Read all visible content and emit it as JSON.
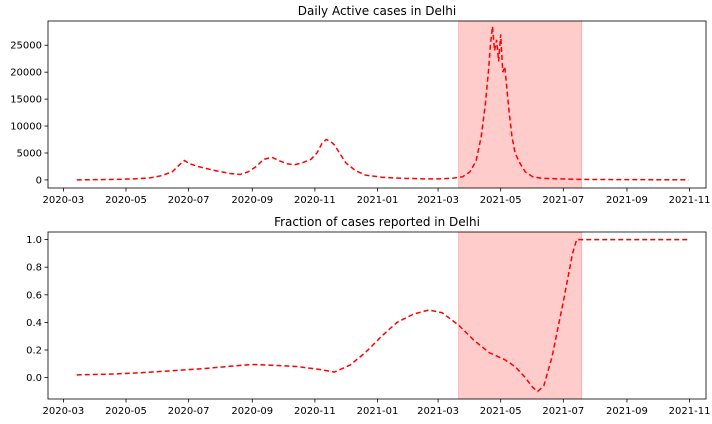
{
  "chart_data": [
    {
      "type": "line",
      "title": "Daily Active cases in Delhi",
      "xlabel": "",
      "ylabel": "",
      "xlim": [
        "2020-02-15",
        "2021-11-17"
      ],
      "ylim": [
        -1500,
        29500
      ],
      "grid": false,
      "x_ticks": [
        "2020-03",
        "2020-05",
        "2020-07",
        "2020-09",
        "2020-11",
        "2021-01",
        "2021-03",
        "2021-05",
        "2021-07",
        "2021-09",
        "2021-11"
      ],
      "y_ticks": [
        0,
        5000,
        10000,
        15000,
        20000,
        25000
      ],
      "highlight": {
        "from": "2021-03-21",
        "to": "2021-07-19",
        "color": "#ff0000"
      },
      "series": [
        {
          "color": "#ff0000",
          "x": [
            "2020-03-14",
            "2020-04-01",
            "2020-04-20",
            "2020-05-10",
            "2020-05-25",
            "2020-06-05",
            "2020-06-15",
            "2020-06-22",
            "2020-06-27",
            "2020-07-02",
            "2020-07-10",
            "2020-07-25",
            "2020-08-10",
            "2020-08-20",
            "2020-08-28",
            "2020-09-05",
            "2020-09-12",
            "2020-09-20",
            "2020-09-28",
            "2020-10-05",
            "2020-10-12",
            "2020-10-20",
            "2020-10-28",
            "2020-11-03",
            "2020-11-08",
            "2020-11-12",
            "2020-11-16",
            "2020-11-20",
            "2020-11-25",
            "2020-12-01",
            "2020-12-10",
            "2020-12-20",
            "2021-01-05",
            "2021-01-25",
            "2021-02-15",
            "2021-03-01",
            "2021-03-15",
            "2021-03-25",
            "2021-04-01",
            "2021-04-07",
            "2021-04-12",
            "2021-04-16",
            "2021-04-19",
            "2021-04-21",
            "2021-04-23",
            "2021-04-25",
            "2021-04-27",
            "2021-04-29",
            "2021-05-01",
            "2021-05-03",
            "2021-05-05",
            "2021-05-07",
            "2021-05-09",
            "2021-05-12",
            "2021-05-15",
            "2021-05-20",
            "2021-05-25",
            "2021-06-01",
            "2021-06-10",
            "2021-06-25",
            "2021-07-15",
            "2021-08-01",
            "2021-09-01",
            "2021-10-01",
            "2021-10-31"
          ],
          "y": [
            0,
            50,
            100,
            200,
            400,
            800,
            1500,
            2800,
            3600,
            3000,
            2500,
            1800,
            1200,
            1000,
            1500,
            2500,
            3800,
            4200,
            3500,
            3000,
            2800,
            3200,
            3800,
            5000,
            6800,
            7500,
            7200,
            6500,
            5000,
            3200,
            1800,
            900,
            500,
            300,
            200,
            200,
            300,
            600,
            1500,
            3500,
            8000,
            14000,
            20000,
            25000,
            28500,
            24000,
            26000,
            22000,
            27000,
            20000,
            21000,
            17000,
            13000,
            8000,
            5000,
            3000,
            1500,
            600,
            300,
            200,
            100,
            80,
            50,
            40,
            30
          ]
        }
      ]
    },
    {
      "type": "line",
      "title": "Fraction of cases reported in Delhi",
      "xlabel": "",
      "ylabel": "",
      "xlim": [
        "2020-02-15",
        "2021-11-17"
      ],
      "ylim": [
        -0.155,
        1.055
      ],
      "grid": false,
      "x_ticks": [
        "2020-03",
        "2020-05",
        "2020-07",
        "2020-09",
        "2020-11",
        "2021-01",
        "2021-03",
        "2021-05",
        "2021-07",
        "2021-09",
        "2021-11"
      ],
      "y_ticks": [
        0.0,
        0.2,
        0.4,
        0.6,
        0.8,
        1.0
      ],
      "highlight": {
        "from": "2021-03-21",
        "to": "2021-07-19",
        "color": "#ff0000"
      },
      "series": [
        {
          "color": "#ff0000",
          "x": [
            "2020-03-14",
            "2020-04-15",
            "2020-05-15",
            "2020-06-15",
            "2020-07-15",
            "2020-08-15",
            "2020-09-01",
            "2020-09-20",
            "2020-10-15",
            "2020-11-05",
            "2020-11-20",
            "2020-12-05",
            "2020-12-20",
            "2021-01-05",
            "2021-01-20",
            "2021-02-05",
            "2021-02-20",
            "2021-03-05",
            "2021-03-21",
            "2021-04-05",
            "2021-04-20",
            "2021-05-05",
            "2021-05-15",
            "2021-05-25",
            "2021-06-01",
            "2021-06-06",
            "2021-06-12",
            "2021-06-20",
            "2021-07-01",
            "2021-07-10",
            "2021-07-14",
            "2021-08-01",
            "2021-09-01",
            "2021-10-01",
            "2021-10-31"
          ],
          "y": [
            0.02,
            0.025,
            0.035,
            0.05,
            0.065,
            0.085,
            0.095,
            0.09,
            0.08,
            0.06,
            0.04,
            0.09,
            0.18,
            0.3,
            0.4,
            0.46,
            0.49,
            0.47,
            0.38,
            0.27,
            0.18,
            0.13,
            0.08,
            0.0,
            -0.07,
            -0.1,
            -0.06,
            0.15,
            0.55,
            0.9,
            1.0,
            1.0,
            1.0,
            1.0,
            1.0
          ]
        }
      ]
    }
  ]
}
